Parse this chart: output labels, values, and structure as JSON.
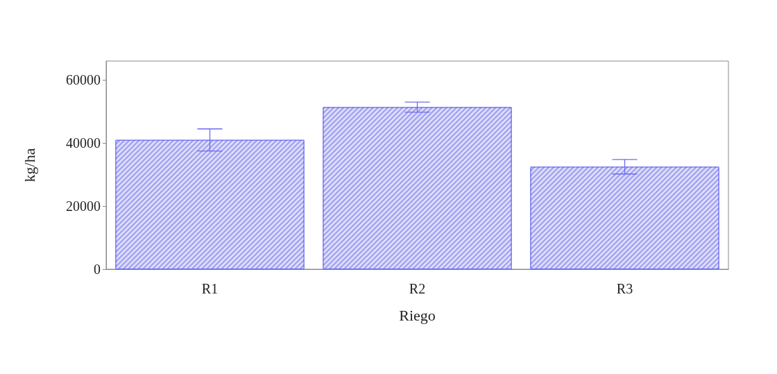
{
  "chart_data": {
    "type": "bar",
    "xlabel": "Riego",
    "ylabel": "kg/ha",
    "categories": [
      "R1",
      "R2",
      "R3"
    ],
    "values": [
      41000,
      51400,
      32500
    ],
    "errors": [
      3500,
      1600,
      2300
    ],
    "color": "#a9a9f2",
    "ylim": [
      0,
      66000
    ],
    "yticks": [
      0,
      20000,
      40000,
      60000
    ],
    "grid": false
  }
}
